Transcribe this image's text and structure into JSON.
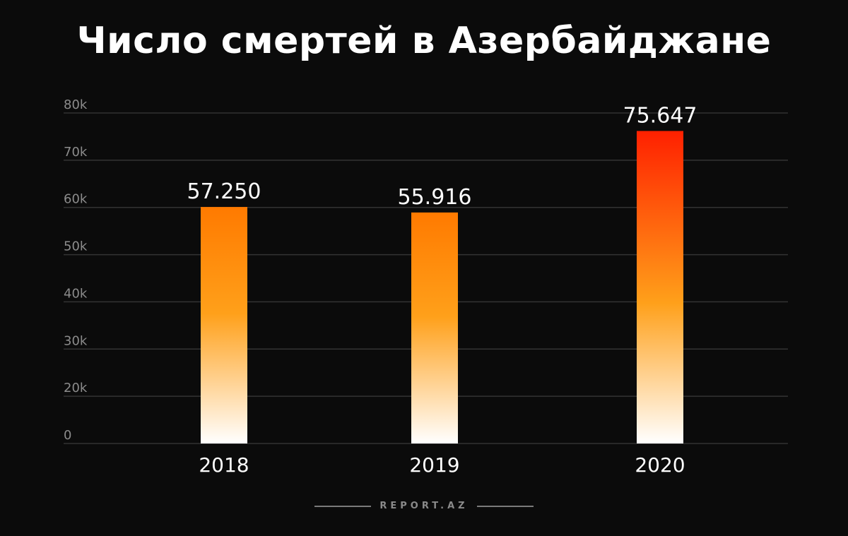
{
  "chart_data": {
    "type": "bar",
    "title": "Число смертей в Азербайджане",
    "categories": [
      "2018",
      "2019",
      "2020"
    ],
    "values": [
      57250,
      55916,
      75647
    ],
    "data_labels": [
      "57.250",
      "55.916",
      "75.647"
    ],
    "y_tick_labels": [
      "0",
      "20k",
      "30k",
      "40k",
      "50k",
      "60k",
      "70k",
      "80k"
    ],
    "ylim": [
      0,
      80000
    ],
    "grid": true,
    "legend": "none",
    "colors": {
      "bar_top": "#ff2a00",
      "bar_mid": "#ff9a00",
      "bar_bottom": "#ffffff",
      "background": "#0b0b0b",
      "grid": "#333333"
    }
  },
  "footer": {
    "brand": "REPORT.AZ"
  }
}
